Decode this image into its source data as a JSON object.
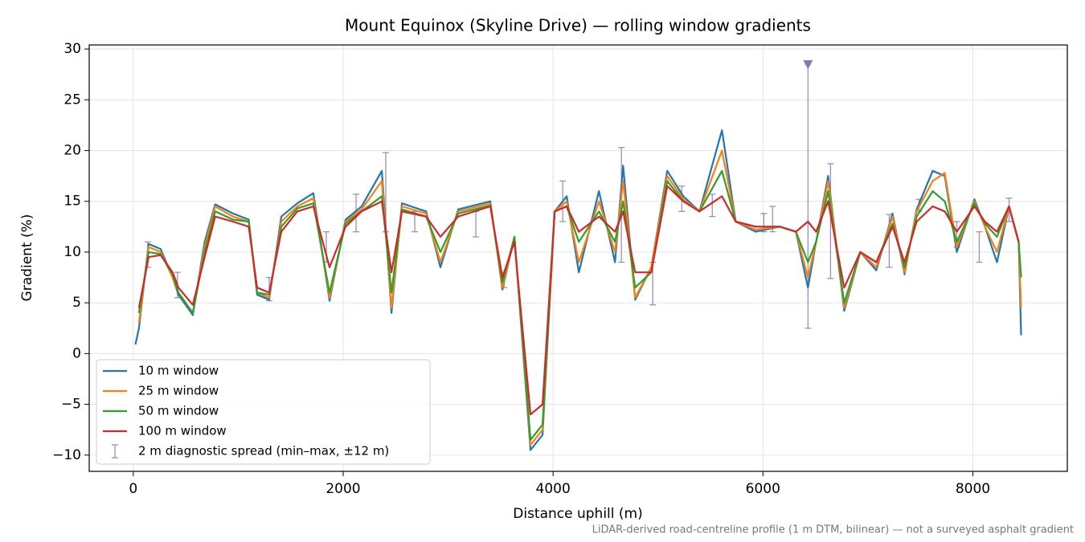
{
  "chart_data": {
    "type": "line",
    "title": "Mount Equinox (Skyline Drive) — rolling window gradients",
    "x_label": "Distance uphill (m)",
    "y_label": "Gradient (%)",
    "footnote": "LiDAR-derived road-centreline profile (1 m DTM, bilinear) — not a surveyed asphalt gradient",
    "xlim": [
      -420,
      8900
    ],
    "ylim": [
      -11.6,
      30.4
    ],
    "xticks": [
      0,
      2000,
      4000,
      6000,
      8000
    ],
    "yticks": [
      {
        "value": -10,
        "label": "−10"
      },
      {
        "value": -5,
        "label": "−5"
      },
      0,
      5,
      10,
      15,
      20,
      25,
      30
    ],
    "grid": true,
    "legend": "lower left",
    "x": [
      20,
      54,
      146,
      260,
      375,
      430,
      567,
      680,
      780,
      950,
      1100,
      1180,
      1295,
      1410,
      1563,
      1716,
      1870,
      2023,
      2176,
      2368,
      2460,
      2560,
      2790,
      2927,
      3096,
      3402,
      3517,
      3632,
      3785,
      3900,
      4015,
      4130,
      4245,
      4437,
      4590,
      4667,
      4782,
      4935,
      5088,
      5241,
      5395,
      5609,
      5740,
      5931,
      6161,
      6314,
      6429,
      6506,
      6621,
      6774,
      6927,
      7080,
      7234,
      7349,
      7464,
      7617,
      7732,
      7847,
      8015,
      8115,
      8230,
      8345,
      8437,
      8460
    ],
    "series": [
      {
        "name": "10 m window",
        "color": "#1f77b4",
        "values": [
          0.9,
          2.5,
          10.8,
          10.3,
          7.5,
          5.8,
          3.8,
          11,
          14.7,
          13.8,
          13.2,
          5.8,
          5.3,
          13.5,
          14.8,
          15.8,
          5.2,
          13.2,
          14.5,
          18,
          4,
          14.8,
          14,
          8.5,
          14.2,
          15,
          6.3,
          11.5,
          -9.5,
          -8,
          14,
          15.5,
          8,
          16,
          9,
          18.5,
          5.3,
          8.5,
          18,
          15.5,
          14,
          22,
          13,
          12,
          12.5,
          12,
          6.5,
          11,
          17.5,
          4.2,
          10,
          8.2,
          13.8,
          7.8,
          14.2,
          18,
          17.5,
          10,
          15.2,
          12.5,
          9,
          14.5,
          11,
          1.8
        ]
      },
      {
        "name": "25 m window",
        "color": "#ff7f0e",
        "values": [
          null,
          3,
          10.5,
          10,
          7.5,
          6,
          4,
          10.5,
          14.5,
          13.5,
          13,
          6,
          5.5,
          13,
          14.5,
          15.3,
          5.5,
          13,
          14.2,
          17,
          4.5,
          14.5,
          13.8,
          9,
          14,
          14.8,
          6.5,
          11.5,
          -9,
          -7.5,
          14,
          15,
          9,
          15,
          10,
          17,
          5.5,
          8.5,
          17.5,
          15.2,
          14,
          20,
          13,
          12.2,
          12.5,
          12,
          7.5,
          11,
          17,
          4.5,
          10,
          8.5,
          13.5,
          8,
          14,
          17,
          17.8,
          10.5,
          15,
          12.5,
          10,
          14.5,
          11,
          4.5
        ]
      },
      {
        "name": "50 m window",
        "color": "#2ca02c",
        "values": [
          null,
          4,
          10,
          9.8,
          7.8,
          6,
          4,
          10,
          14,
          13.2,
          13,
          6,
          5.8,
          12.5,
          14.3,
          14.8,
          6,
          12.8,
          14,
          15.5,
          6,
          14.2,
          13.5,
          10,
          13.8,
          14.6,
          7,
          11.5,
          -8.5,
          -7,
          14,
          14.5,
          11,
          14,
          11,
          15,
          6.5,
          8,
          17,
          15,
          14,
          18,
          13,
          12.5,
          12.5,
          12,
          9,
          11,
          16,
          5,
          10,
          9,
          12.8,
          8.5,
          13.5,
          16,
          15,
          11,
          14.8,
          12.8,
          11.5,
          14.5,
          11,
          7.5
        ]
      },
      {
        "name": "100 m window",
        "color": "#d62728",
        "values": [
          null,
          4.5,
          9.5,
          9.7,
          8,
          6.5,
          4.8,
          9.5,
          13.5,
          13,
          12.5,
          6.5,
          6,
          12,
          14,
          14.5,
          8.5,
          12.5,
          14,
          15,
          8,
          14,
          13.5,
          11.5,
          13.5,
          14.5,
          7.5,
          11,
          -6,
          -5,
          14,
          14.5,
          12,
          13.5,
          12,
          14,
          8,
          8,
          16.5,
          15,
          14,
          15.5,
          13,
          12.5,
          12.5,
          12,
          13,
          12,
          15,
          6.5,
          10,
          9,
          12.5,
          9,
          13,
          14.5,
          14,
          12,
          14.5,
          13,
          12,
          14.5,
          11,
          null
        ]
      }
    ],
    "errorbars": {
      "name": "2 m diagnostic spread (min–max, ±12 m)",
      "color": "#9a8fc0",
      "x": [
        138,
        421,
        1295,
        1839,
        2123,
        2406,
        2682,
        3264,
        3533,
        4092,
        4651,
        4950,
        5226,
        5517,
        6008,
        6092,
        6429,
        6644,
        7203,
        7487,
        7847,
        8061,
        8345
      ],
      "low": [
        8.5,
        5.5,
        5.2,
        9,
        12,
        12,
        12,
        11.5,
        6.5,
        13,
        9,
        4.8,
        14,
        13.5,
        12,
        12,
        2.5,
        7.4,
        8.5,
        14,
        10.5,
        9,
        13
      ],
      "high": [
        11,
        8,
        7.5,
        12,
        15.7,
        19.8,
        14,
        14,
        8,
        17,
        20.3,
        9,
        16.5,
        15.7,
        13.8,
        14.5,
        28.5,
        18.7,
        13.7,
        15.2,
        13,
        12,
        15.3
      ]
    }
  }
}
